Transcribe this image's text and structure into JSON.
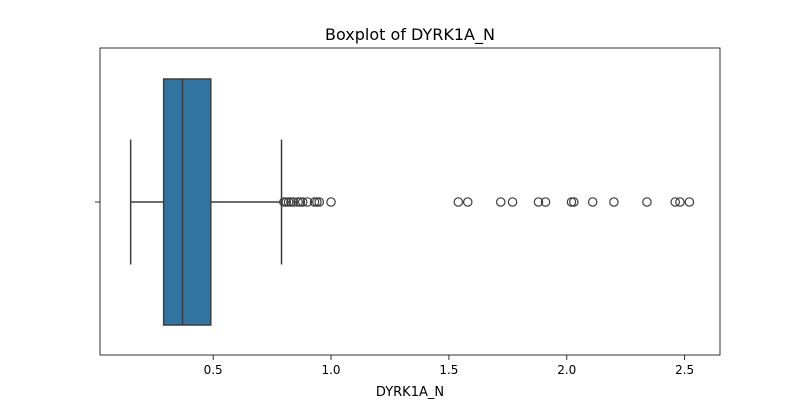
{
  "chart_data": {
    "type": "boxplot",
    "title": "Boxplot of DYRK1A_N",
    "xlabel": "DYRK1A_N",
    "ylabel": "",
    "xlim": [
      0.02,
      2.65
    ],
    "xticks": [
      0.5,
      1.0,
      1.5,
      2.0,
      2.5
    ],
    "xtick_labels": [
      "0.5",
      "1.0",
      "1.5",
      "2.0",
      "2.5"
    ],
    "grid": false,
    "box": {
      "whisker_low": 0.15,
      "q1": 0.29,
      "median": 0.37,
      "q3": 0.49,
      "whisker_high": 0.79,
      "color": "#3274a1"
    },
    "outliers": [
      0.8,
      0.81,
      0.82,
      0.83,
      0.84,
      0.86,
      0.87,
      0.88,
      0.9,
      0.93,
      0.94,
      0.95,
      1.0,
      1.54,
      1.58,
      1.72,
      1.77,
      1.88,
      1.91,
      2.02,
      2.03,
      2.11,
      2.2,
      2.34,
      2.46,
      2.48,
      2.52
    ]
  }
}
